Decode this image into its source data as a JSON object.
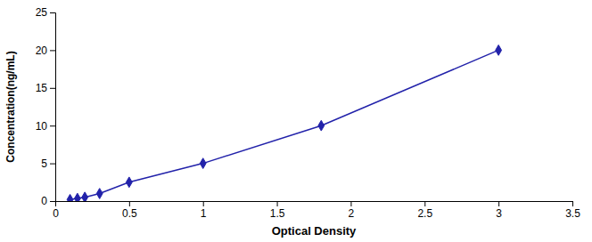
{
  "chart_data": {
    "type": "line",
    "xlabel": "Optical Density",
    "ylabel": "Concentration(ng/mL)",
    "x": [
      0.1,
      0.15,
      0.2,
      0.3,
      0.5,
      1.0,
      1.8,
      3.0
    ],
    "values": [
      0.2,
      0.35,
      0.5,
      1.0,
      2.5,
      5.0,
      10.0,
      20.0
    ],
    "color": "#2222aa",
    "marker": "diamond",
    "xlim": [
      0,
      3.5
    ],
    "ylim": [
      0,
      25
    ],
    "xticks": [
      0,
      0.5,
      1,
      1.5,
      2,
      2.5,
      3,
      3.5
    ],
    "yticks": [
      0,
      5,
      10,
      15,
      20,
      25
    ]
  }
}
